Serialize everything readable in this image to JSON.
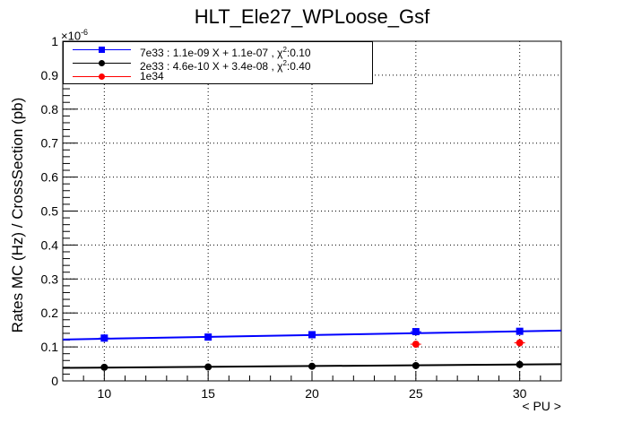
{
  "chart_data": {
    "type": "scatter",
    "title": "HLT_Ele27_WPLoose_Gsf",
    "xlabel": "< PU >",
    "ylabel": "Rates MC (Hz) / CrossSection (pb)",
    "y_exponent_base": "×10",
    "y_exponent": "-6",
    "xlim": [
      8,
      32
    ],
    "ylim": [
      0,
      1
    ],
    "xticks": [
      10,
      15,
      20,
      25,
      30
    ],
    "yticks": [
      0,
      0.1,
      0.2,
      0.3,
      0.4,
      0.5,
      0.6,
      0.7,
      0.8,
      0.9,
      1
    ],
    "ytick_labels": [
      "0",
      "0.1",
      "0.2",
      "0.3",
      "0.4",
      "0.5",
      "0.6",
      "0.7",
      "0.8",
      "0.9",
      "1"
    ],
    "grid": true,
    "legend_position": "top-left",
    "series": [
      {
        "key": "7e33",
        "legend_prefix": "7e33 : 1.1e-09 X + 1.1e-07 , ",
        "legend_chi": "χ",
        "legend_chi_sup": "2",
        "legend_suffix": ":0.10",
        "color": "#0000ff",
        "marker": "square",
        "x": [
          10,
          15,
          20,
          25,
          30
        ],
        "y": [
          0.126,
          0.129,
          0.136,
          0.145,
          0.146
        ],
        "yerr": [
          0.012,
          0.006,
          0.006,
          0.006,
          0.006
        ],
        "fit": {
          "slope": 0.0011,
          "intercept": 0.113
        }
      },
      {
        "key": "2e33",
        "legend_prefix": "2e33 : 4.6e-10 X + 3.4e-08 , ",
        "legend_chi": "χ",
        "legend_chi_sup": "2",
        "legend_suffix": ":0.40",
        "color": "#000000",
        "marker": "circle",
        "x": [
          10,
          15,
          20,
          25,
          30
        ],
        "y": [
          0.04,
          0.041,
          0.043,
          0.045,
          0.048
        ],
        "yerr": [
          0.003,
          0.002,
          0.002,
          0.002,
          0.002
        ],
        "fit": {
          "slope": 0.00046,
          "intercept": 0.0345
        }
      },
      {
        "key": "1e34",
        "legend_prefix": "1e34",
        "legend_chi": "",
        "legend_chi_sup": "",
        "legend_suffix": "",
        "color": "#ff0000",
        "marker": "circle",
        "x": [
          25,
          30
        ],
        "y": [
          0.108,
          0.112
        ],
        "yerr": [
          0,
          0
        ]
      }
    ]
  }
}
